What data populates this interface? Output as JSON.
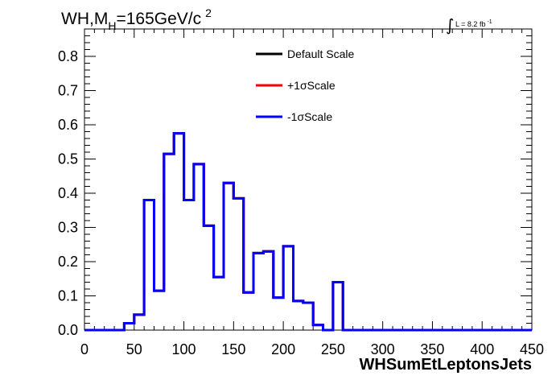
{
  "plot": {
    "title_main": "WH,M",
    "title_sub": "H",
    "title_rest": "=165GeV/c",
    "title_sup": "2",
    "lumi_prefix": "L = 8.2 fb",
    "lumi_sup": "-1"
  },
  "chart_data": {
    "type": "line",
    "title": "WH,MH=165GeV/c 2",
    "xlabel": "WHSumEtLeptonsJets",
    "ylabel": "",
    "xlim": [
      0,
      450
    ],
    "ylim": [
      0,
      0.88
    ],
    "grid": false,
    "legend_position": "top-center",
    "x_ticks": [
      "0",
      "50",
      "100",
      "150",
      "200",
      "250",
      "300",
      "350",
      "400",
      "450"
    ],
    "y_ticks": [
      "0.0",
      "0.1",
      "0.2",
      "0.3",
      "0.4",
      "0.5",
      "0.6",
      "0.7",
      "0.8"
    ],
    "bin_edges": [
      0,
      10,
      20,
      30,
      40,
      50,
      60,
      70,
      80,
      90,
      100,
      110,
      120,
      130,
      140,
      150,
      160,
      170,
      180,
      190,
      200,
      210,
      220,
      230,
      240,
      250,
      260,
      270,
      280,
      290,
      300,
      310,
      320,
      330,
      340,
      350,
      360,
      370,
      380,
      390,
      400,
      410,
      420,
      430,
      440,
      450
    ],
    "series": [
      {
        "name": "Default Scale",
        "color": "#000000",
        "values": [
          0,
          0,
          0,
          0,
          0.02,
          0.045,
          0.38,
          0.115,
          0.515,
          0.575,
          0.38,
          0.485,
          0.305,
          0.155,
          0.43,
          0.385,
          0.11,
          0.225,
          0.23,
          0.095,
          0.245,
          0.085,
          0.08,
          0.015,
          0,
          0.14,
          0,
          0,
          0,
          0,
          0,
          0,
          0,
          0,
          0,
          0,
          0,
          0,
          0,
          0,
          0,
          0,
          0,
          0,
          0
        ]
      },
      {
        "name": "+1σScale",
        "color": "#ff0000",
        "values": [
          0,
          0,
          0,
          0,
          0.02,
          0.045,
          0.38,
          0.115,
          0.515,
          0.575,
          0.38,
          0.485,
          0.305,
          0.155,
          0.43,
          0.385,
          0.11,
          0.225,
          0.23,
          0.095,
          0.245,
          0.085,
          0.08,
          0.015,
          0,
          0.14,
          0,
          0,
          0,
          0,
          0,
          0,
          0,
          0,
          0,
          0,
          0,
          0,
          0,
          0,
          0,
          0,
          0,
          0,
          0
        ]
      },
      {
        "name": "-1σScale",
        "color": "#0000ff",
        "values": [
          0,
          0,
          0,
          0,
          0.02,
          0.045,
          0.38,
          0.115,
          0.515,
          0.575,
          0.38,
          0.485,
          0.305,
          0.155,
          0.43,
          0.385,
          0.11,
          0.225,
          0.23,
          0.095,
          0.245,
          0.085,
          0.08,
          0.015,
          0,
          0.14,
          0,
          0,
          0,
          0,
          0,
          0,
          0,
          0,
          0,
          0,
          0,
          0,
          0,
          0,
          0,
          0,
          0,
          0,
          0
        ]
      }
    ]
  }
}
